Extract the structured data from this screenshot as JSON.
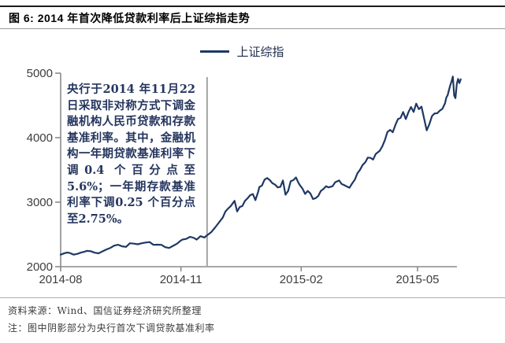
{
  "title": "图 6: 2014 年首次降低贷款利率后上证综指走势",
  "legend": {
    "label": "上证综指"
  },
  "annotation": {
    "text": "央行于2014 年11月22日采取非对称方式下调金融机构人民币贷款和存款基准利率。其中，金融机构一年期贷款基准利率下调0.4 个百分点至5.6%；一年期存款基准利率下调0.25 个百分点至2.75%。"
  },
  "footer": {
    "source": "资料来源：Wind、国信证券经济研究所整理",
    "note": "注：图中阴影部分为央行首次下调贷款基准利率"
  },
  "colors": {
    "line": "#1F3864",
    "axis": "#8a8a8a",
    "event_line": "#a3a3a3",
    "tick_text": "#3d3d3d"
  },
  "chart_data": {
    "type": "line",
    "title": "2014 年首次降低贷款利率后上证综指走势",
    "xlabel": "",
    "ylabel": "",
    "grid": false,
    "legend_position": "top-center",
    "y_axis": {
      "range": [
        2000,
        5000
      ],
      "ticks": [
        2000,
        3000,
        4000,
        5000
      ]
    },
    "x_axis": {
      "range_days": [
        0,
        306
      ],
      "ticks": [
        {
          "day": 0,
          "label": "2014-08"
        },
        {
          "day": 92,
          "label": "2014-11"
        },
        {
          "day": 184,
          "label": "2015-02"
        },
        {
          "day": 273,
          "label": "2015-05"
        }
      ]
    },
    "event_line": {
      "day": 112
    },
    "series": [
      {
        "name": "上证综指",
        "points": [
          [
            0,
            2186
          ],
          [
            3,
            2210
          ],
          [
            5,
            2220
          ],
          [
            7,
            2212
          ],
          [
            10,
            2187
          ],
          [
            13,
            2200
          ],
          [
            15,
            2216
          ],
          [
            18,
            2231
          ],
          [
            20,
            2245
          ],
          [
            23,
            2240
          ],
          [
            26,
            2217
          ],
          [
            29,
            2207
          ],
          [
            32,
            2238
          ],
          [
            35,
            2267
          ],
          [
            38,
            2291
          ],
          [
            41,
            2327
          ],
          [
            44,
            2340
          ],
          [
            47,
            2316
          ],
          [
            50,
            2307
          ],
          [
            53,
            2364
          ],
          [
            56,
            2357
          ],
          [
            59,
            2347
          ],
          [
            62,
            2364
          ],
          [
            65,
            2374
          ],
          [
            68,
            2382
          ],
          [
            71,
            2339
          ],
          [
            74,
            2341
          ],
          [
            77,
            2339
          ],
          [
            80,
            2303
          ],
          [
            83,
            2290
          ],
          [
            86,
            2323
          ],
          [
            89,
            2356
          ],
          [
            91,
            2391
          ],
          [
            93,
            2420
          ],
          [
            96,
            2430
          ],
          [
            99,
            2463
          ],
          [
            102,
            2445
          ],
          [
            104,
            2420
          ],
          [
            107,
            2473
          ],
          [
            110,
            2452
          ],
          [
            112,
            2487
          ],
          [
            115,
            2532
          ],
          [
            118,
            2604
          ],
          [
            121,
            2683
          ],
          [
            124,
            2763
          ],
          [
            126,
            2855
          ],
          [
            128,
            2900
          ],
          [
            130,
            2937
          ],
          [
            133,
            3021
          ],
          [
            135,
            2856
          ],
          [
            137,
            2925
          ],
          [
            139,
            2940
          ],
          [
            141,
            3021
          ],
          [
            143,
            3061
          ],
          [
            145,
            3108
          ],
          [
            147,
            3127
          ],
          [
            149,
            3032
          ],
          [
            151,
            3157
          ],
          [
            152,
            3234
          ],
          [
            154,
            3258
          ],
          [
            156,
            3351
          ],
          [
            158,
            3374
          ],
          [
            160,
            3342
          ],
          [
            162,
            3294
          ],
          [
            164,
            3272
          ],
          [
            166,
            3229
          ],
          [
            168,
            3236
          ],
          [
            170,
            3336
          ],
          [
            172,
            3116
          ],
          [
            174,
            3173
          ],
          [
            176,
            3324
          ],
          [
            178,
            3343
          ],
          [
            180,
            3383
          ],
          [
            182,
            3296
          ],
          [
            183,
            3262
          ],
          [
            185,
            3210
          ],
          [
            187,
            3128
          ],
          [
            189,
            3175
          ],
          [
            191,
            3136
          ],
          [
            193,
            3049
          ],
          [
            195,
            3062
          ],
          [
            197,
            3095
          ],
          [
            199,
            3173
          ],
          [
            201,
            3204
          ],
          [
            203,
            3246
          ],
          [
            205,
            3229
          ],
          [
            208,
            3247
          ],
          [
            210,
            3310
          ],
          [
            213,
            3336
          ],
          [
            215,
            3280
          ],
          [
            217,
            3263
          ],
          [
            219,
            3241
          ],
          [
            221,
            3224
          ],
          [
            223,
            3291
          ],
          [
            225,
            3349
          ],
          [
            227,
            3449
          ],
          [
            229,
            3502
          ],
          [
            231,
            3577
          ],
          [
            233,
            3617
          ],
          [
            235,
            3691
          ],
          [
            237,
            3687
          ],
          [
            239,
            3661
          ],
          [
            241,
            3748
          ],
          [
            244,
            3795
          ],
          [
            246,
            3864
          ],
          [
            248,
            3961
          ],
          [
            250,
            4089
          ],
          [
            252,
            4121
          ],
          [
            254,
            4084
          ],
          [
            256,
            4194
          ],
          [
            258,
            4288
          ],
          [
            260,
            4306
          ],
          [
            262,
            4398
          ],
          [
            264,
            4288
          ],
          [
            266,
            4394
          ],
          [
            268,
            4476
          ],
          [
            270,
            4399
          ],
          [
            272,
            4528
          ],
          [
            274,
            4442
          ],
          [
            276,
            4480
          ],
          [
            278,
            4298
          ],
          [
            280,
            4113
          ],
          [
            282,
            4206
          ],
          [
            284,
            4334
          ],
          [
            286,
            4376
          ],
          [
            288,
            4378
          ],
          [
            290,
            4418
          ],
          [
            292,
            4446
          ],
          [
            294,
            4530
          ],
          [
            295,
            4621
          ],
          [
            296,
            4658
          ],
          [
            298,
            4814
          ],
          [
            299,
            4870
          ],
          [
            300,
            4947
          ],
          [
            301,
            4654
          ],
          [
            302,
            4612
          ],
          [
            303,
            4829
          ],
          [
            304,
            4911
          ],
          [
            305,
            4846
          ],
          [
            306,
            4905
          ]
        ]
      }
    ]
  }
}
